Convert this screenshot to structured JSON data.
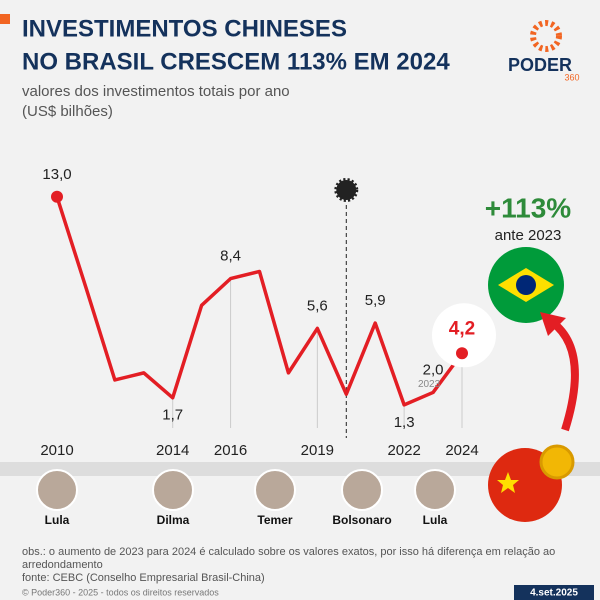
{
  "chart_data": {
    "type": "line",
    "title_lines": [
      "INVESTIMENTOS CHINESES",
      "NO BRASIL CRESCEM 113% EM 2024"
    ],
    "subtitle_lines": [
      "valores dos investimentos totais por ano",
      "(US$ bilhões)"
    ],
    "categories": [
      "2010",
      null,
      null,
      null,
      "2014",
      null,
      "2016",
      null,
      null,
      "2019",
      null,
      null,
      "2022",
      null,
      "2024"
    ],
    "values": [
      13.0,
      7.9,
      2.7,
      3.1,
      1.7,
      6.9,
      8.4,
      8.8,
      3.1,
      5.6,
      1.9,
      5.9,
      1.3,
      2.0,
      4.2
    ],
    "value_labels": [
      "13,0",
      null,
      null,
      null,
      "1,7",
      null,
      "8,4",
      null,
      null,
      "5,6",
      null,
      "5,9",
      "1,3",
      "2,0",
      "4,2"
    ],
    "point_note": "2023",
    "color": "#e31e24",
    "ylim": [
      0,
      14
    ],
    "presidents": [
      "Lula",
      "Dilma",
      "Temer",
      "Bolsonaro",
      "Lula"
    ],
    "highlight": {
      "value": "+113%",
      "text": "ante 2023"
    },
    "logo": {
      "name": "PODER",
      "number": "360"
    },
    "notes": [
      "obs.: o aumento de 2023 para 2024 é calculado sobre os valores exatos, por isso há diferença em relação ao",
      "arredondamento",
      "fonte: CEBC (Conselho Empresarial Brasil-China)"
    ],
    "copyright": "© Poder360 - 2025 - todos os direitos reservados",
    "date": "4.set.2025"
  }
}
